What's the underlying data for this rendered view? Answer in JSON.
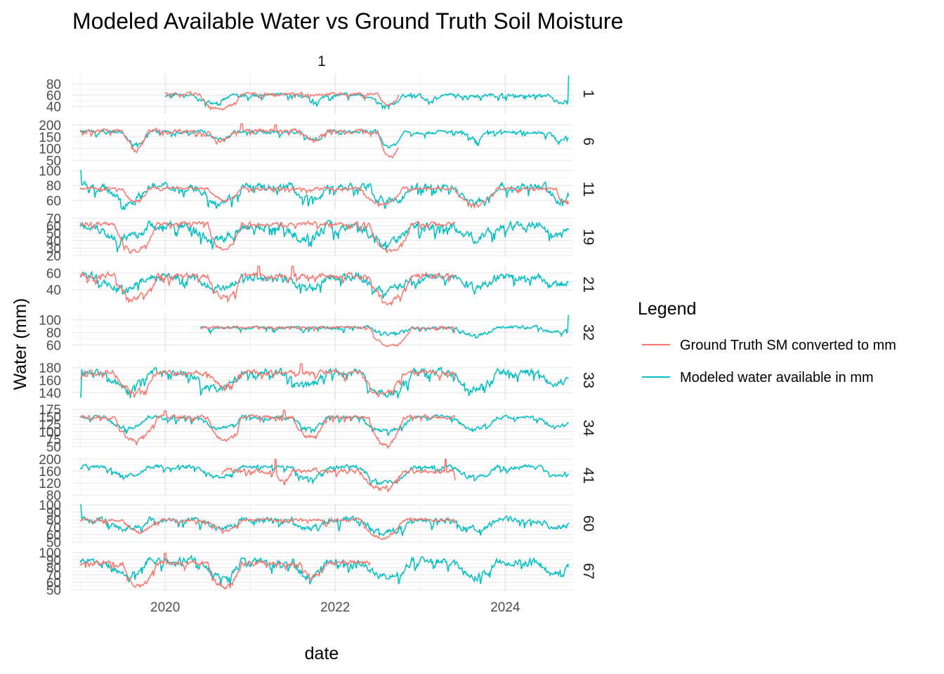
{
  "chart_data": {
    "type": "line",
    "title": "Modeled Available Water vs Ground Truth Soil Moisture",
    "column_strip": "1",
    "xlabel": "date",
    "ylabel": "Water (mm)",
    "x_range": [
      "2019-01-01",
      "2024-10-01"
    ],
    "x_ticks": [
      "2020",
      "2022",
      "2024"
    ],
    "legend": {
      "title": "Legend",
      "placement": "right",
      "entries": [
        {
          "label": "Ground Truth SM converted to mm",
          "color": "#F8766D"
        },
        {
          "label": "Modeled water available in mm",
          "color": "#00BFC4"
        }
      ]
    },
    "grid": true,
    "panels": [
      {
        "strip": "1",
        "ylim": [
          27,
          98
        ],
        "yticks": [
          40,
          60,
          80
        ],
        "modeled": {
          "start": "2020-01-01",
          "end": "2024-10-01",
          "base": 60,
          "dips": [
            [
              2020.3,
              2020.8,
              48
            ],
            [
              2021.6,
              2021.9,
              50
            ],
            [
              2022.4,
              2022.8,
              42
            ],
            [
              2023.0,
              2023.2,
              50
            ],
            [
              2024.5,
              2024.8,
              48
            ]
          ],
          "noise": 5,
          "spikes": [
            [
              2024.75,
              95
            ]
          ]
        },
        "ground": {
          "start": "2020-01-01",
          "end": "2022-10-01",
          "base": 62,
          "dips": [
            [
              2020.4,
              2020.9,
              35
            ],
            [
              2022.5,
              2022.75,
              42
            ]
          ],
          "noise": 4,
          "spikes": []
        }
      },
      {
        "strip": "6",
        "ylim": [
          45,
          215
        ],
        "yticks": [
          50,
          100,
          150,
          200
        ],
        "modeled": {
          "start": "2019-01-01",
          "end": "2024-10-01",
          "base": 170,
          "dips": [
            [
              2019.5,
              2019.8,
              120
            ],
            [
              2020.5,
              2020.8,
              140
            ],
            [
              2021.6,
              2021.9,
              140
            ],
            [
              2022.5,
              2022.8,
              110
            ],
            [
              2023.5,
              2023.8,
              140
            ],
            [
              2024.5,
              2024.8,
              140
            ]
          ],
          "noise": 12,
          "spikes": []
        },
        "ground": {
          "start": "2019-01-01",
          "end": "2022-10-01",
          "base": 175,
          "dips": [
            [
              2019.5,
              2019.8,
              110
            ],
            [
              2020.5,
              2020.8,
              130
            ],
            [
              2021.6,
              2021.9,
              140
            ],
            [
              2022.5,
              2022.8,
              65
            ]
          ],
          "noise": 14,
          "spikes": [
            [
              2020.9,
              205
            ],
            [
              2021.3,
              200
            ]
          ]
        }
      },
      {
        "strip": "11",
        "ylim": [
          48,
          102
        ],
        "yticks": [
          60,
          80,
          100
        ],
        "modeled": {
          "start": "2019-01-01",
          "end": "2024-10-01",
          "base": 78,
          "dips": [
            [
              2019.3,
              2019.8,
              58
            ],
            [
              2020.4,
              2020.9,
              60
            ],
            [
              2021.5,
              2021.9,
              62
            ],
            [
              2022.4,
              2022.9,
              58
            ],
            [
              2023.4,
              2023.9,
              58
            ],
            [
              2024.5,
              2024.8,
              60
            ]
          ],
          "noise": 8,
          "spikes": [
            [
              2019.0,
              100
            ]
          ]
        },
        "ground": {
          "start": "2019-01-01",
          "end": "2024-10-01",
          "base": 76,
          "dips": [
            [
              2019.5,
              2019.8,
              58
            ],
            [
              2020.5,
              2020.9,
              60
            ],
            [
              2022.3,
              2022.8,
              55
            ],
            [
              2023.4,
              2023.9,
              55
            ],
            [
              2024.6,
              2024.8,
              57
            ]
          ],
          "noise": 3,
          "spikes": []
        }
      },
      {
        "strip": "19",
        "ylim": [
          18,
          72
        ],
        "yticks": [
          20,
          30,
          40,
          50,
          60,
          70
        ],
        "modeled": {
          "start": "2019-01-01",
          "end": "2024-10-01",
          "base": 60,
          "dips": [
            [
              2019.2,
              2019.8,
              42
            ],
            [
              2020.3,
              2020.9,
              42
            ],
            [
              2021.4,
              2021.9,
              44
            ],
            [
              2022.3,
              2022.9,
              40
            ],
            [
              2023.4,
              2023.9,
              44
            ],
            [
              2024.4,
              2024.8,
              45
            ]
          ],
          "noise": 9,
          "spikes": []
        },
        "ground": {
          "start": "2019-01-01",
          "end": "2023-06-01",
          "base": 63,
          "dips": [
            [
              2019.4,
              2019.9,
              26
            ],
            [
              2020.5,
              2020.9,
              28
            ],
            [
              2022.4,
              2022.9,
              25
            ]
          ],
          "noise": 4,
          "spikes": []
        }
      },
      {
        "strip": "21",
        "ylim": [
          22,
          70
        ],
        "yticks": [
          40,
          60
        ],
        "modeled": {
          "start": "2019-01-01",
          "end": "2024-10-01",
          "base": 55,
          "dips": [
            [
              2019.2,
              2019.8,
              42
            ],
            [
              2020.3,
              2020.9,
              42
            ],
            [
              2021.4,
              2021.9,
              44
            ],
            [
              2022.3,
              2022.9,
              40
            ],
            [
              2023.4,
              2023.9,
              45
            ],
            [
              2024.4,
              2024.8,
              45
            ]
          ],
          "noise": 7,
          "spikes": []
        },
        "ground": {
          "start": "2019-01-01",
          "end": "2023-06-01",
          "base": 57,
          "dips": [
            [
              2019.4,
              2019.9,
              30
            ],
            [
              2020.5,
              2020.9,
              32
            ],
            [
              2022.4,
              2022.9,
              26
            ]
          ],
          "noise": 5,
          "spikes": [
            [
              2021.1,
              68
            ],
            [
              2021.5,
              68
            ]
          ]
        }
      },
      {
        "strip": "32",
        "ylim": [
          48,
          112
        ],
        "yticks": [
          60,
          80,
          100
        ],
        "modeled": {
          "start": "2020-06-01",
          "end": "2024-10-01",
          "base": 88,
          "dips": [
            [
              2022.4,
              2022.9,
              78
            ],
            [
              2023.4,
              2023.9,
              76
            ],
            [
              2024.4,
              2024.8,
              80
            ]
          ],
          "noise": 4,
          "spikes": [
            [
              2020.4,
              63
            ],
            [
              2024.75,
              108
            ]
          ]
        },
        "ground": {
          "start": "2020-06-01",
          "end": "2023-06-01",
          "base": 88,
          "dips": [
            [
              2022.4,
              2022.9,
              58
            ],
            [
              2023.4,
              2023.5,
              58
            ]
          ],
          "noise": 3,
          "spikes": []
        }
      },
      {
        "strip": "33",
        "ylim": [
          128,
          192
        ],
        "yticks": [
          140,
          160,
          180
        ],
        "modeled": {
          "start": "2019-01-01",
          "end": "2024-10-01",
          "base": 172,
          "dips": [
            [
              2019.3,
              2019.8,
              150
            ],
            [
              2020.3,
              2020.9,
              145
            ],
            [
              2021.4,
              2021.9,
              150
            ],
            [
              2022.3,
              2022.9,
              138
            ],
            [
              2023.4,
              2023.9,
              148
            ],
            [
              2024.4,
              2024.8,
              155
            ]
          ],
          "noise": 9,
          "spikes": [
            [
              2019.0,
              133
            ]
          ]
        },
        "ground": {
          "start": "2019-01-01",
          "end": "2023-06-01",
          "base": 172,
          "dips": [
            [
              2019.4,
              2019.9,
              145
            ],
            [
              2020.5,
              2020.9,
              150
            ],
            [
              2022.3,
              2022.8,
              138
            ],
            [
              2023.4,
              2023.5,
              135
            ]
          ],
          "noise": 6,
          "spikes": [
            [
              2021.6,
              186
            ]
          ]
        }
      },
      {
        "strip": "34",
        "ylim": [
          45,
          180
        ],
        "yticks": [
          50,
          75,
          100,
          125,
          150,
          175
        ],
        "modeled": {
          "start": "2019-01-01",
          "end": "2024-10-01",
          "base": 148,
          "dips": [
            [
              2019.3,
              2019.8,
              115
            ],
            [
              2020.4,
              2020.9,
              110
            ],
            [
              2021.5,
              2021.9,
              110
            ],
            [
              2022.3,
              2022.9,
              100
            ],
            [
              2023.4,
              2023.9,
              110
            ],
            [
              2024.4,
              2024.8,
              115
            ]
          ],
          "noise": 10,
          "spikes": []
        },
        "ground": {
          "start": "2019-01-01",
          "end": "2023-06-01",
          "base": 150,
          "dips": [
            [
              2019.4,
              2019.9,
              70
            ],
            [
              2020.5,
              2020.9,
              70
            ],
            [
              2021.5,
              2021.9,
              80
            ],
            [
              2022.4,
              2022.8,
              55
            ]
          ],
          "noise": 10,
          "spikes": [
            [
              2020.0,
              170
            ],
            [
              2021.4,
              172
            ]
          ]
        }
      },
      {
        "strip": "41",
        "ylim": [
          78,
          212
        ],
        "yticks": [
          80,
          120,
          160,
          200
        ],
        "modeled": {
          "start": "2019-01-01",
          "end": "2024-10-01",
          "base": 175,
          "dips": [
            [
              2019.3,
              2019.8,
              145
            ],
            [
              2020.4,
              2020.9,
              140
            ],
            [
              2021.5,
              2021.9,
              140
            ],
            [
              2022.3,
              2022.9,
              120
            ],
            [
              2023.4,
              2023.9,
              140
            ],
            [
              2024.4,
              2024.8,
              145
            ]
          ],
          "noise": 11,
          "spikes": []
        },
        "ground": {
          "start": "2020-09-01",
          "end": "2023-06-01",
          "base": 160,
          "dips": [
            [
              2021.3,
              2021.5,
              130
            ],
            [
              2022.3,
              2022.8,
              100
            ],
            [
              2023.4,
              2023.5,
              90
            ]
          ],
          "noise": 12,
          "spikes": [
            [
              2021.3,
              200
            ],
            [
              2023.3,
              200
            ]
          ]
        }
      },
      {
        "strip": "60",
        "ylim": [
          48,
          102
        ],
        "yticks": [
          50,
          60,
          70,
          80,
          90,
          100
        ],
        "modeled": {
          "start": "2019-01-01",
          "end": "2024-10-01",
          "base": 80,
          "dips": [
            [
              2019.3,
              2019.8,
              68
            ],
            [
              2020.4,
              2020.9,
              68
            ],
            [
              2021.5,
              2021.9,
              68
            ],
            [
              2022.3,
              2022.9,
              64
            ],
            [
              2023.4,
              2023.9,
              68
            ],
            [
              2024.4,
              2024.8,
              70
            ]
          ],
          "noise": 6,
          "spikes": [
            [
              2019.0,
              100
            ]
          ]
        },
        "ground": {
          "start": "2019-01-01",
          "end": "2023-06-01",
          "base": 80,
          "dips": [
            [
              2019.5,
              2019.9,
              64
            ],
            [
              2020.5,
              2020.9,
              66
            ],
            [
              2022.3,
              2022.8,
              55
            ],
            [
              2023.4,
              2023.5,
              62
            ]
          ],
          "noise": 3,
          "spikes": []
        }
      },
      {
        "strip": "67",
        "ylim": [
          48,
          102
        ],
        "yticks": [
          50,
          60,
          70,
          80,
          90,
          100
        ],
        "modeled": {
          "start": "2019-01-01",
          "end": "2024-10-01",
          "base": 88,
          "dips": [
            [
              2019.3,
              2019.8,
              70
            ],
            [
              2020.4,
              2020.9,
              68
            ],
            [
              2021.5,
              2021.9,
              68
            ],
            [
              2022.3,
              2022.9,
              66
            ],
            [
              2023.4,
              2023.9,
              68
            ],
            [
              2024.4,
              2024.8,
              70
            ]
          ],
          "noise": 8,
          "spikes": []
        },
        "ground": {
          "start": "2019-01-01",
          "end": "2022-06-01",
          "base": 86,
          "dips": [
            [
              2019.5,
              2019.9,
              55
            ],
            [
              2020.5,
              2020.9,
              55
            ],
            [
              2021.6,
              2021.9,
              68
            ]
          ],
          "noise": 5,
          "spikes": [
            [
              2020.0,
              99
            ]
          ]
        }
      }
    ]
  }
}
